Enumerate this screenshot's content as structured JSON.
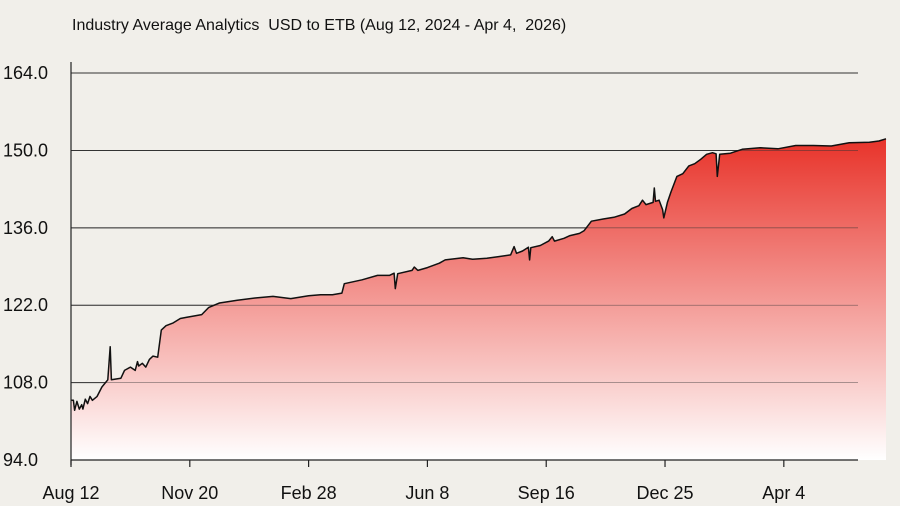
{
  "chart_data": {
    "type": "area",
    "title": "Industry Average Analytics  USD to ETB (Aug 12, 2024 - Apr 4,  2026)",
    "xlabel": "",
    "ylabel": "",
    "y_ticks": [
      "94.0",
      "108.0",
      "122.0",
      "136.0",
      "150.0",
      "164.0"
    ],
    "ylim": [
      94,
      166
    ],
    "x_ticks": [
      "Aug 12",
      "Nov 20",
      "Feb 28",
      "Jun 8",
      "Sep 16",
      "Dec 25",
      "Apr 4"
    ],
    "x_tick_days": [
      0,
      100,
      200,
      300,
      400,
      500,
      600
    ],
    "xlim": [
      0,
      686
    ],
    "grid": "horizontal",
    "legend": "none",
    "colors": {
      "fill_top": "#e8332a",
      "fill_bottom": "#ffffff",
      "line": "#111111",
      "grid": "#333333"
    },
    "points": [
      [
        0,
        104.8
      ],
      [
        2,
        104.8
      ],
      [
        3,
        103.0
      ],
      [
        5,
        104.6
      ],
      [
        7,
        103.2
      ],
      [
        9,
        104.0
      ],
      [
        10,
        103.2
      ],
      [
        12,
        105.0
      ],
      [
        14,
        104.2
      ],
      [
        16,
        105.5
      ],
      [
        18,
        104.8
      ],
      [
        22,
        105.5
      ],
      [
        26,
        107.2
      ],
      [
        31,
        108.5
      ],
      [
        33,
        114.5
      ],
      [
        34,
        108.5
      ],
      [
        42,
        108.8
      ],
      [
        45,
        110.2
      ],
      [
        50,
        110.8
      ],
      [
        54,
        110.2
      ],
      [
        56,
        111.8
      ],
      [
        57,
        111.0
      ],
      [
        60,
        111.5
      ],
      [
        63,
        110.8
      ],
      [
        66,
        112.2
      ],
      [
        69,
        112.8
      ],
      [
        73,
        112.6
      ],
      [
        76,
        117.5
      ],
      [
        80,
        118.3
      ],
      [
        86,
        118.8
      ],
      [
        92,
        119.6
      ],
      [
        97,
        119.8
      ],
      [
        110,
        120.3
      ],
      [
        116,
        121.6
      ],
      [
        125,
        122.4
      ],
      [
        140,
        122.9
      ],
      [
        155,
        123.3
      ],
      [
        170,
        123.6
      ],
      [
        185,
        123.2
      ],
      [
        200,
        123.7
      ],
      [
        210,
        123.9
      ],
      [
        220,
        123.9
      ],
      [
        228,
        124.2
      ],
      [
        230,
        125.9
      ],
      [
        245,
        126.6
      ],
      [
        258,
        127.4
      ],
      [
        268,
        127.4
      ],
      [
        272,
        127.8
      ],
      [
        273,
        125.0
      ],
      [
        275,
        127.7
      ],
      [
        287,
        128.3
      ],
      [
        289,
        128.9
      ],
      [
        292,
        128.3
      ],
      [
        300,
        128.8
      ],
      [
        310,
        129.6
      ],
      [
        315,
        130.2
      ],
      [
        323,
        130.4
      ],
      [
        330,
        130.6
      ],
      [
        338,
        130.3
      ],
      [
        350,
        130.5
      ],
      [
        360,
        130.8
      ],
      [
        370,
        131.1
      ],
      [
        373,
        132.6
      ],
      [
        375,
        131.4
      ],
      [
        380,
        131.8
      ],
      [
        385,
        132.5
      ],
      [
        386,
        130.2
      ],
      [
        387,
        132.4
      ],
      [
        395,
        132.8
      ],
      [
        402,
        133.6
      ],
      [
        405,
        134.4
      ],
      [
        407,
        133.6
      ],
      [
        415,
        134.1
      ],
      [
        420,
        134.6
      ],
      [
        428,
        135.0
      ],
      [
        432,
        135.5
      ],
      [
        438,
        137.2
      ],
      [
        448,
        137.6
      ],
      [
        457,
        137.9
      ],
      [
        466,
        138.5
      ],
      [
        472,
        139.5
      ],
      [
        478,
        140.0
      ],
      [
        481,
        141.0
      ],
      [
        484,
        140.2
      ],
      [
        490,
        140.6
      ],
      [
        491,
        143.2
      ],
      [
        492,
        140.8
      ],
      [
        495,
        141.0
      ],
      [
        498,
        139.3
      ],
      [
        499,
        137.8
      ],
      [
        502,
        140.6
      ],
      [
        505,
        142.5
      ],
      [
        510,
        145.3
      ],
      [
        515,
        145.8
      ],
      [
        520,
        147.2
      ],
      [
        525,
        147.6
      ],
      [
        530,
        148.4
      ],
      [
        535,
        149.3
      ],
      [
        540,
        149.6
      ],
      [
        543,
        149.4
      ],
      [
        544,
        145.3
      ],
      [
        546,
        149.3
      ],
      [
        555,
        149.5
      ],
      [
        565,
        150.2
      ],
      [
        580,
        150.5
      ],
      [
        595,
        150.3
      ],
      [
        610,
        150.9
      ],
      [
        625,
        150.9
      ],
      [
        640,
        150.8
      ],
      [
        655,
        151.4
      ],
      [
        672,
        151.5
      ],
      [
        680,
        151.7
      ],
      [
        686,
        152.1
      ]
    ]
  }
}
